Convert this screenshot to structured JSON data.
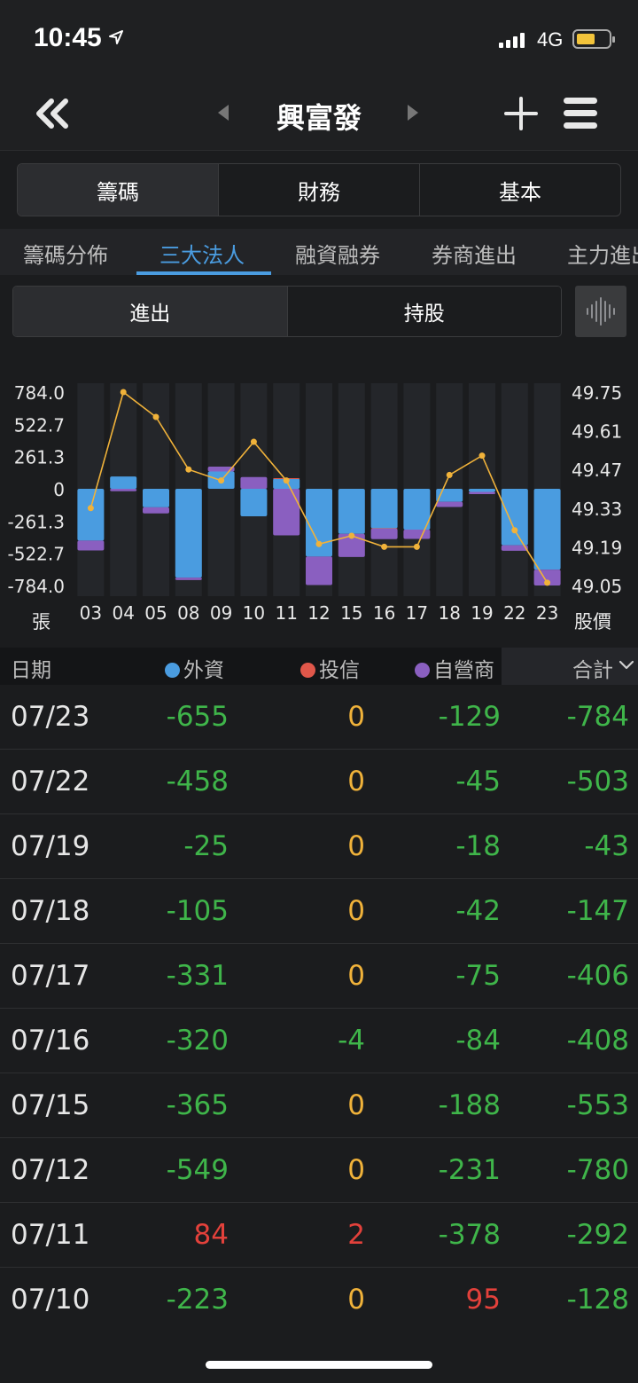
{
  "status_bar": {
    "time": "10:45",
    "network": "4G"
  },
  "nav": {
    "title": "興富發"
  },
  "main_tabs": [
    {
      "label": "籌碼"
    },
    {
      "label": "財務"
    },
    {
      "label": "基本"
    }
  ],
  "sub_tabs": [
    {
      "label": "籌碼分佈"
    },
    {
      "label": "三大法人"
    },
    {
      "label": "融資融券"
    },
    {
      "label": "券商進出"
    },
    {
      "label": "主力進出"
    }
  ],
  "view_toggle": [
    {
      "label": "進出"
    },
    {
      "label": "持股"
    }
  ],
  "colors": {
    "foreign": "#4a9ce0",
    "trust": "#e0574a",
    "dealer": "#8a5fc0",
    "price_line": "#f0b23a",
    "negative": "#3fb54a",
    "positive": "#e3413b",
    "zero": "#f0b23a",
    "accent": "#4a9ce0"
  },
  "chart_data": {
    "type": "bar",
    "stacked": true,
    "categories": [
      "03",
      "04",
      "05",
      "08",
      "09",
      "10",
      "11",
      "12",
      "15",
      "16",
      "17",
      "18",
      "19",
      "22",
      "23"
    ],
    "series": [
      {
        "name": "外資",
        "values": [
          -420,
          100,
          -150,
          -720,
          140,
          -223,
          84,
          -549,
          -365,
          -320,
          -331,
          -105,
          -25,
          -458,
          -655
        ]
      },
      {
        "name": "投信",
        "values": [
          0,
          0,
          0,
          0,
          0,
          0,
          2,
          0,
          0,
          -4,
          0,
          0,
          0,
          0,
          0
        ]
      },
      {
        "name": "自營商",
        "values": [
          -80,
          -20,
          -50,
          -20,
          40,
          95,
          -378,
          -231,
          -188,
          -84,
          -75,
          -42,
          -18,
          -45,
          -129
        ]
      },
      {
        "name": "股價",
        "values": [
          49.33,
          49.75,
          49.66,
          49.47,
          49.43,
          49.57,
          49.43,
          49.2,
          49.23,
          49.19,
          49.19,
          49.45,
          49.52,
          49.25,
          49.06
        ]
      }
    ],
    "left_axis": {
      "ticks": [
        "784.0",
        "522.7",
        "261.3",
        "0",
        "-261.3",
        "-522.7",
        "-784.0"
      ],
      "unit": "張",
      "ylim": [
        -784,
        784
      ]
    },
    "right_axis": {
      "ticks": [
        "49.75",
        "49.61",
        "49.47",
        "49.33",
        "49.19",
        "49.05"
      ],
      "unit": "股價",
      "ylim": [
        49.05,
        49.75
      ]
    }
  },
  "table": {
    "headers": {
      "date": "日期",
      "foreign": "外資",
      "trust": "投信",
      "dealer": "自營商",
      "total": "合計"
    },
    "rows": [
      {
        "date": "07/23",
        "foreign": "-655",
        "trust": "0",
        "dealer": "-129",
        "total": "-784"
      },
      {
        "date": "07/22",
        "foreign": "-458",
        "trust": "0",
        "dealer": "-45",
        "total": "-503"
      },
      {
        "date": "07/19",
        "foreign": "-25",
        "trust": "0",
        "dealer": "-18",
        "total": "-43"
      },
      {
        "date": "07/18",
        "foreign": "-105",
        "trust": "0",
        "dealer": "-42",
        "total": "-147"
      },
      {
        "date": "07/17",
        "foreign": "-331",
        "trust": "0",
        "dealer": "-75",
        "total": "-406"
      },
      {
        "date": "07/16",
        "foreign": "-320",
        "trust": "-4",
        "dealer": "-84",
        "total": "-408"
      },
      {
        "date": "07/15",
        "foreign": "-365",
        "trust": "0",
        "dealer": "-188",
        "total": "-553"
      },
      {
        "date": "07/12",
        "foreign": "-549",
        "trust": "0",
        "dealer": "-231",
        "total": "-780"
      },
      {
        "date": "07/11",
        "foreign": "84",
        "trust": "2",
        "dealer": "-378",
        "total": "-292"
      },
      {
        "date": "07/10",
        "foreign": "-223",
        "trust": "0",
        "dealer": "95",
        "total": "-128"
      }
    ]
  }
}
